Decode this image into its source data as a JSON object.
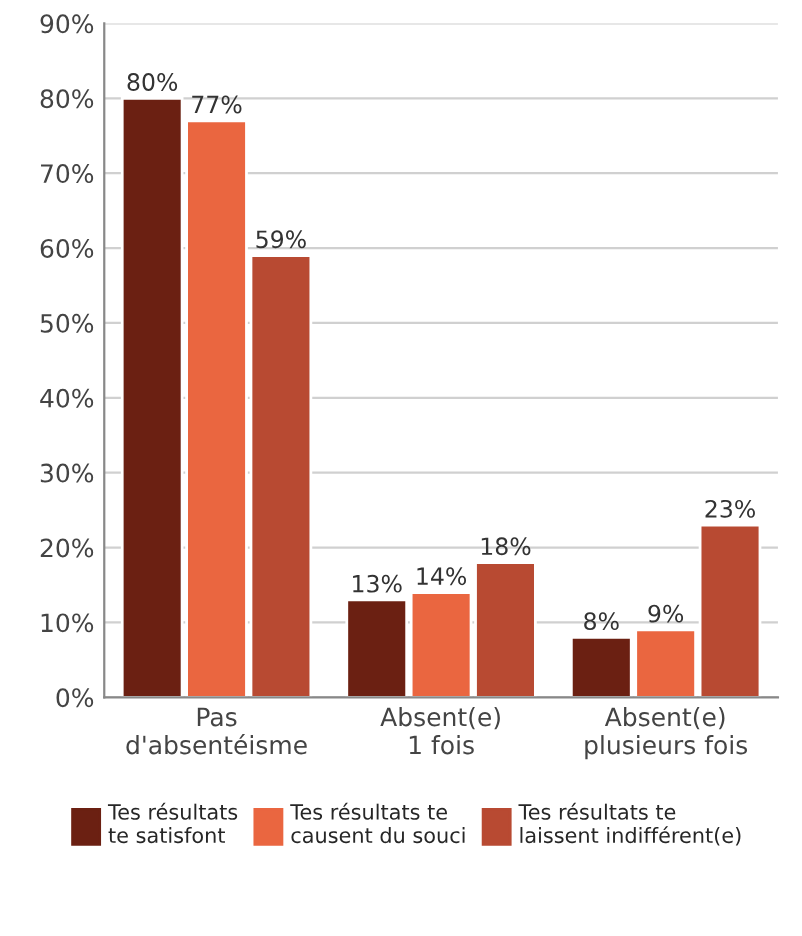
{
  "chart_data": {
    "type": "bar",
    "categories": [
      "Pas\nd'absentéisme",
      "Absent(e)\n1 fois",
      "Absent(e)\nplusieurs fois"
    ],
    "series": [
      {
        "name": "Tes résultats\nte satisfont",
        "color": "#6b2012",
        "values": [
          80,
          13,
          8
        ],
        "value_labels": [
          "80%",
          "13%",
          "8%"
        ]
      },
      {
        "name": "Tes résultats te\ncausent du souci",
        "color": "#ea6640",
        "values": [
          77,
          14,
          9
        ],
        "value_labels": [
          "77%",
          "14%",
          "9%"
        ]
      },
      {
        "name": "Tes résultats te\nlaissent indifférent(e)",
        "color": "#b84a32",
        "values": [
          59,
          18,
          23
        ],
        "value_labels": [
          "59%",
          "18%",
          "23%"
        ]
      }
    ],
    "ylim": [
      0,
      90
    ],
    "yticks": [
      {
        "value": 0,
        "label": "0%"
      },
      {
        "value": 10,
        "label": "10%"
      },
      {
        "value": 20,
        "label": "20%"
      },
      {
        "value": 30,
        "label": "30%"
      },
      {
        "value": 40,
        "label": "40%"
      },
      {
        "value": 50,
        "label": "50%"
      },
      {
        "value": 60,
        "label": "60%"
      },
      {
        "value": 70,
        "label": "70%"
      },
      {
        "value": 80,
        "label": "80%"
      },
      {
        "value": 90,
        "label": "90%"
      }
    ],
    "grid": "y",
    "legend": "bottom"
  }
}
